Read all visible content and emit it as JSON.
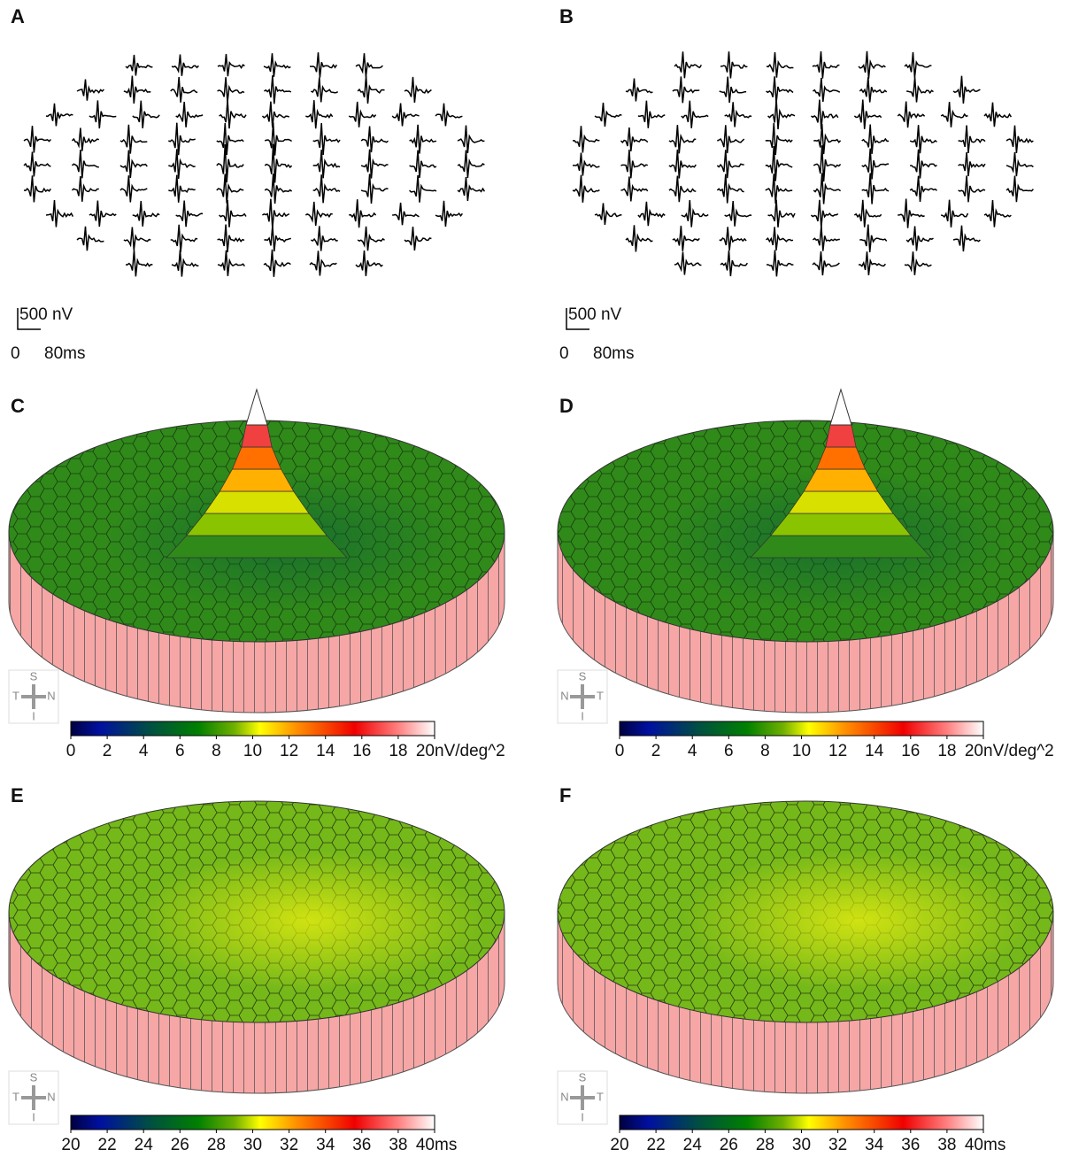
{
  "panels": [
    {
      "label": "A",
      "kind": "traces",
      "scale_bar": {
        "amplitude": "500 nV",
        "zero": "0",
        "time": "80ms"
      }
    },
    {
      "label": "B",
      "kind": "traces",
      "scale_bar": {
        "amplitude": "500 nV",
        "zero": "0",
        "time": "80ms"
      }
    },
    {
      "label": "C",
      "kind": "surface",
      "peak": true,
      "compass": {
        "top": "S",
        "bottom": "I",
        "left": "T",
        "right": "N"
      },
      "colorbar": {
        "lim": [
          0,
          20
        ],
        "ticks": [
          0,
          2,
          4,
          6,
          8,
          10,
          12,
          14,
          16,
          18,
          20
        ],
        "unit": "nV/deg^2"
      }
    },
    {
      "label": "D",
      "kind": "surface",
      "peak": true,
      "compass": {
        "top": "S",
        "bottom": "I",
        "left": "N",
        "right": "T"
      },
      "colorbar": {
        "lim": [
          0,
          20
        ],
        "ticks": [
          0,
          2,
          4,
          6,
          8,
          10,
          12,
          14,
          16,
          18,
          20
        ],
        "unit": "nV/deg^2"
      }
    },
    {
      "label": "E",
      "kind": "surface",
      "peak": false,
      "compass": {
        "top": "S",
        "bottom": "I",
        "left": "T",
        "right": "N"
      },
      "colorbar": {
        "lim": [
          20,
          40
        ],
        "ticks": [
          20,
          22,
          24,
          26,
          28,
          30,
          32,
          34,
          36,
          38,
          40
        ],
        "unit": "ms"
      }
    },
    {
      "label": "F",
      "kind": "surface",
      "peak": false,
      "compass": {
        "top": "S",
        "bottom": "I",
        "left": "N",
        "right": "T"
      },
      "colorbar": {
        "lim": [
          20,
          40
        ],
        "ticks": [
          20,
          22,
          24,
          26,
          28,
          30,
          32,
          34,
          36,
          38,
          40
        ],
        "unit": "ms"
      }
    }
  ]
}
